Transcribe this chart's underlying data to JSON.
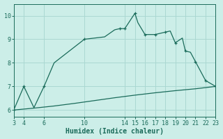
{
  "title": "",
  "xlabel": "Humidex (Indice chaleur)",
  "bg_color": "#cceee8",
  "grid_color": "#aad8d2",
  "line_color": "#1a6b5a",
  "xlim": [
    3,
    23
  ],
  "ylim": [
    5.7,
    10.5
  ],
  "xticks": [
    3,
    4,
    6,
    10,
    14,
    15,
    16,
    17,
    18,
    19,
    20,
    21,
    22,
    23
  ],
  "yticks": [
    6,
    7,
    8,
    9,
    10
  ],
  "line1_x": [
    3,
    4,
    5,
    6,
    6.5,
    7,
    10,
    11,
    12,
    13,
    13.5,
    14,
    15,
    15.3,
    16,
    17,
    18,
    18.5,
    19,
    19.7,
    20,
    20.5,
    21,
    22,
    23
  ],
  "line1_y": [
    6.0,
    7.0,
    6.1,
    7.0,
    7.5,
    8.0,
    9.0,
    9.05,
    9.1,
    9.4,
    9.45,
    9.45,
    10.1,
    9.7,
    9.2,
    9.2,
    9.3,
    9.35,
    8.85,
    9.05,
    8.5,
    8.45,
    8.05,
    7.25,
    7.0
  ],
  "line1_markers_x": [
    3,
    4,
    6,
    10,
    13.5,
    14,
    15,
    16,
    17,
    18,
    19,
    20,
    21,
    22,
    23
  ],
  "line1_markers_y": [
    6.0,
    7.0,
    7.0,
    9.0,
    9.45,
    9.45,
    10.1,
    9.2,
    9.2,
    9.3,
    8.85,
    8.5,
    8.05,
    7.25,
    7.0
  ],
  "line2_x": [
    3,
    5,
    7,
    9,
    11,
    13,
    15,
    17,
    19,
    21,
    23
  ],
  "line2_y": [
    6.0,
    6.08,
    6.17,
    6.28,
    6.4,
    6.52,
    6.63,
    6.73,
    6.82,
    6.9,
    7.0
  ]
}
